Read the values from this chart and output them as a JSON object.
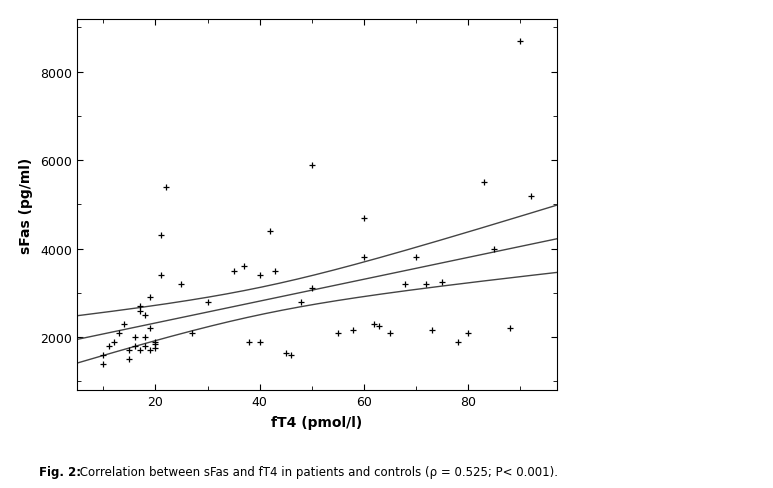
{
  "scatter_x": [
    10,
    10,
    11,
    12,
    13,
    14,
    15,
    15,
    16,
    16,
    17,
    17,
    17,
    18,
    18,
    18,
    19,
    19,
    19,
    20,
    20,
    20,
    21,
    21,
    22,
    25,
    27,
    30,
    35,
    37,
    38,
    40,
    40,
    42,
    43,
    45,
    46,
    48,
    50,
    50,
    55,
    58,
    60,
    60,
    62,
    63,
    65,
    68,
    70,
    72,
    73,
    75,
    78,
    80,
    83,
    85,
    88,
    90,
    92
  ],
  "scatter_y": [
    1400,
    1600,
    1800,
    1900,
    2100,
    2300,
    1500,
    1700,
    1800,
    2000,
    1700,
    2600,
    2700,
    1800,
    2000,
    2500,
    1700,
    2200,
    2900,
    1900,
    1750,
    1850,
    4300,
    3400,
    5400,
    3200,
    2100,
    2800,
    3500,
    3600,
    1900,
    3400,
    1900,
    4400,
    3500,
    1650,
    1600,
    2800,
    5900,
    3100,
    2100,
    2150,
    4700,
    3800,
    2300,
    2250,
    2100,
    3200,
    3800,
    3200,
    2150,
    3250,
    1900,
    2100,
    5500,
    4000,
    2200,
    8700,
    5200
  ],
  "x_label": "fT4 (pmol/l)",
  "y_label": "sFas (pg/ml)",
  "x_lim": [
    5,
    97
  ],
  "y_lim": [
    800,
    9200
  ],
  "x_ticks": [
    20,
    40,
    60,
    80
  ],
  "y_ticks": [
    2000,
    4000,
    6000,
    8000
  ],
  "line_color": "#444444",
  "scatter_color": "#000000",
  "background_color": "#ffffff",
  "caption_bold": "Fig. 2:",
  "caption_rest": " Correlation between sFas and fT4 in patients and controls (ρ = 0.525; P< 0.001).",
  "marker_size": 25,
  "marker_lw": 0.9,
  "line_width": 1.0,
  "t_val": 1.96
}
